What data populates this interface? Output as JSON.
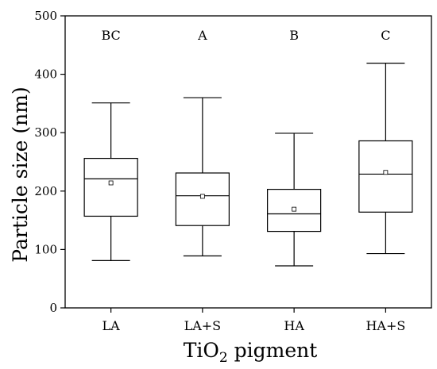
{
  "chart_data": {
    "type": "box",
    "title": "",
    "xlabel": "TiO2 pigment",
    "xlabel_parts": {
      "main": "TiO",
      "subscript": "2",
      "rest": " pigment"
    },
    "ylabel": "Particle size (nm)",
    "ylim": [
      0,
      500
    ],
    "yticks": [
      0,
      100,
      200,
      300,
      400,
      500
    ],
    "grid": false,
    "legend": "none",
    "box_color": "#000000",
    "categories": [
      "LA",
      "LA+S",
      "HA",
      "HA+S"
    ],
    "group_letters": [
      "BC",
      "A",
      "B",
      "C"
    ],
    "boxes": [
      {
        "category": "LA",
        "min": 81,
        "q1": 157,
        "median": 221,
        "q3": 256,
        "max": 351,
        "mean": 214
      },
      {
        "category": "LA+S",
        "min": 89,
        "q1": 141,
        "median": 192,
        "q3": 231,
        "max": 360,
        "mean": 191
      },
      {
        "category": "HA",
        "min": 72,
        "q1": 131,
        "median": 161,
        "q3": 203,
        "max": 299,
        "mean": 169
      },
      {
        "category": "HA+S",
        "min": 93,
        "q1": 164,
        "median": 229,
        "q3": 286,
        "max": 419,
        "mean": 232
      }
    ]
  }
}
